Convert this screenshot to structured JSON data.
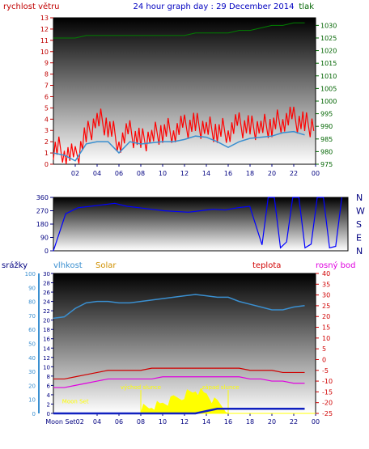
{
  "header": {
    "title": "24 hour graph day : 29 December 2014",
    "left_label": "rychlost větru",
    "right_label": "tlak"
  },
  "compass": [
    "N",
    "W",
    "S",
    "E",
    "N"
  ],
  "bottom_labels": {
    "precip": "srážky",
    "humidity": "vlhkost",
    "solar": "Solar",
    "temperature": "teplota",
    "dewpoint": "rosný bod",
    "moon_set": "Moon Set",
    "moon_set_axis": "Moon Set02",
    "sunrise": "východ slunce",
    "sunset": "západ slunce",
    "moon": "Moon"
  },
  "colors": {
    "wind_gust": "#ff0000",
    "wind_avg": "#3a8fd0",
    "pressure": "#008000",
    "direction": "#0000ff",
    "humidity": "#3a8fd0",
    "temperature": "#d00000",
    "dewpoint": "#e000e0",
    "solar": "#ffff00",
    "precip": "#1020c0",
    "axis_left_text": "#c00000",
    "axis_right_text": "#006400",
    "title_text": "#0000c0"
  },
  "chart_data": [
    {
      "type": "line",
      "name": "wind-pressure",
      "title": "24 hour graph day : 29 December 2014",
      "x_ticks": [
        "02",
        "04",
        "06",
        "08",
        "10",
        "12",
        "14",
        "16",
        "18",
        "20",
        "22",
        "00"
      ],
      "x": [
        1,
        2,
        3,
        4,
        5,
        6,
        7,
        8,
        9,
        10,
        11,
        12,
        13,
        14,
        15,
        16,
        17,
        18,
        19,
        20,
        21,
        22,
        23,
        24
      ],
      "ylabel_left": "rychlost větru",
      "ylim_left": [
        0,
        13
      ],
      "ylabel_right": "tlak",
      "ylim_right": [
        975,
        1033
      ],
      "series": [
        {
          "axis": "left",
          "values": [
            1.5,
            1.2,
            0.5,
            2.5,
            4,
            3.5,
            2,
            2.8,
            2,
            2.5,
            3,
            3,
            3.3,
            3.5,
            3.2,
            3,
            3,
            3.5,
            3.2,
            3.3,
            3.5,
            4,
            4,
            3.5
          ]
        },
        {
          "axis": "left",
          "values": [
            1,
            0.8,
            0.3,
            1.8,
            2,
            2,
            1,
            2,
            1.8,
            1.9,
            2,
            2,
            2.2,
            2.5,
            2.4,
            2,
            1.5,
            2,
            2.3,
            2.4,
            2.5,
            2.8,
            2.9,
            2.6
          ]
        },
        {
          "axis": "right",
          "values": [
            1025,
            1025,
            1025,
            1026,
            1026,
            1026,
            1026,
            1026,
            1026,
            1026,
            1026,
            1026,
            1026,
            1027,
            1027,
            1027,
            1027,
            1028,
            1028,
            1029,
            1030,
            1030,
            1031,
            1031
          ]
        }
      ]
    },
    {
      "type": "line",
      "name": "wind-direction",
      "x": [
        1,
        2,
        3,
        4,
        5,
        6,
        7,
        8,
        9,
        10,
        11,
        12,
        13,
        14,
        15,
        16,
        17,
        18,
        19,
        20,
        21,
        22,
        23,
        24
      ],
      "ylim": [
        0,
        360
      ],
      "y_ticks": [
        0,
        90,
        180,
        270,
        360
      ],
      "values": [
        0,
        250,
        290,
        300,
        310,
        320,
        300,
        290,
        280,
        270,
        265,
        260,
        270,
        280,
        275,
        290,
        300,
        40,
        360,
        60,
        360,
        45,
        360,
        30
      ]
    },
    {
      "type": "line",
      "name": "humidity-temperature-solar",
      "x": [
        1,
        2,
        3,
        4,
        5,
        6,
        7,
        8,
        9,
        10,
        11,
        12,
        13,
        14,
        15,
        16,
        17,
        18,
        19,
        20,
        21,
        22,
        23,
        24
      ],
      "ylim_precip": [
        0,
        30
      ],
      "ylim_humidity": [
        0,
        100
      ],
      "ylim_temperature": [
        -25,
        40
      ],
      "series": [
        {
          "name": "vlhkost",
          "axis": "humidity",
          "values": [
            68,
            69,
            75,
            79,
            80,
            80,
            79,
            79,
            80,
            81,
            82,
            83,
            84,
            85,
            84,
            83,
            83,
            80,
            78,
            76,
            74,
            74,
            76,
            77
          ]
        },
        {
          "name": "teplota",
          "axis": "temperature",
          "values": [
            -9,
            -9,
            -8,
            -7,
            -6,
            -5,
            -5,
            -5,
            -5,
            -4,
            -4,
            -4,
            -4,
            -4,
            -4,
            -4,
            -4,
            -4,
            -5,
            -5,
            -5,
            -6,
            -6,
            -6
          ]
        },
        {
          "name": "rosný bod",
          "axis": "temperature",
          "values": [
            -13,
            -13,
            -12,
            -11,
            -10,
            -9,
            -9,
            -9,
            -9,
            -9,
            -8,
            -8,
            -8,
            -8,
            -8,
            -8,
            -8,
            -8,
            -9,
            -9,
            -10,
            -10,
            -11,
            -11
          ]
        },
        {
          "name": "Solar",
          "axis": "precip",
          "values": [
            0,
            0,
            0,
            0,
            0,
            0,
            0,
            0,
            0,
            0.5,
            1,
            2,
            3,
            4,
            3,
            1,
            0,
            0,
            0,
            0,
            0,
            0,
            0,
            0
          ]
        },
        {
          "name": "srážky",
          "axis": "precip",
          "values": [
            0,
            0,
            0,
            0,
            0,
            0,
            0,
            0,
            0,
            0,
            0,
            0,
            0,
            0,
            0.5,
            1,
            1,
            1,
            1,
            1,
            1,
            1,
            1,
            1
          ]
        }
      ],
      "y_ticks_precip": [
        0,
        2,
        4,
        6,
        8,
        10,
        12,
        14,
        16,
        18,
        20,
        22,
        24,
        26,
        28,
        30
      ],
      "y_ticks_humidity": [
        0,
        10,
        20,
        30,
        40,
        50,
        60,
        70,
        80,
        90,
        100
      ],
      "y_ticks_temperature": [
        40,
        35,
        30,
        25,
        20,
        15,
        10,
        5,
        0,
        -5,
        -10,
        -15,
        -20,
        -25
      ]
    }
  ]
}
